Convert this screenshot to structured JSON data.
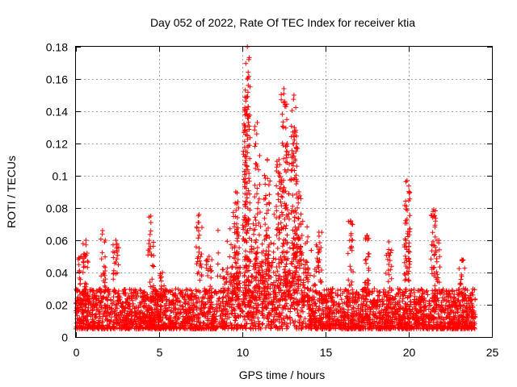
{
  "chart_data": {
    "type": "scatter",
    "title": "Day 052 of 2022, Rate Of TEC Index for receiver ktia",
    "xlabel": "GPS time / hours",
    "ylabel": "ROTI / TECUs",
    "xlim": [
      0,
      25
    ],
    "ylim": [
      0,
      0.18
    ],
    "xticks": [
      "0",
      "5",
      "10",
      "15",
      "20",
      "25"
    ],
    "yticks": [
      "0",
      "0.02",
      "0.04",
      "0.06",
      "0.08",
      "0.1",
      "0.12",
      "0.14",
      "0.16",
      "0.18"
    ],
    "grid": true,
    "marker": "plus",
    "color": "#ff0000",
    "baseline_range": [
      0.005,
      0.03
    ],
    "peaks": [
      {
        "x": 0.3,
        "y": 0.05
      },
      {
        "x": 0.6,
        "y": 0.06
      },
      {
        "x": 1.6,
        "y": 0.066
      },
      {
        "x": 2.4,
        "y": 0.06
      },
      {
        "x": 4.5,
        "y": 0.075
      },
      {
        "x": 5.2,
        "y": 0.04
      },
      {
        "x": 7.4,
        "y": 0.076
      },
      {
        "x": 8.0,
        "y": 0.05
      },
      {
        "x": 9.6,
        "y": 0.09
      },
      {
        "x": 10.2,
        "y": 0.14
      },
      {
        "x": 10.3,
        "y": 0.18
      },
      {
        "x": 10.3,
        "y": 0.16
      },
      {
        "x": 10.9,
        "y": 0.133
      },
      {
        "x": 11.5,
        "y": 0.11
      },
      {
        "x": 12.2,
        "y": 0.11
      },
      {
        "x": 12.5,
        "y": 0.154
      },
      {
        "x": 12.7,
        "y": 0.12
      },
      {
        "x": 13.1,
        "y": 0.15
      },
      {
        "x": 13.2,
        "y": 0.127
      },
      {
        "x": 13.4,
        "y": 0.09
      },
      {
        "x": 14.6,
        "y": 0.065
      },
      {
        "x": 16.5,
        "y": 0.072
      },
      {
        "x": 17.5,
        "y": 0.063
      },
      {
        "x": 18.8,
        "y": 0.059
      },
      {
        "x": 19.9,
        "y": 0.097
      },
      {
        "x": 19.9,
        "y": 0.073
      },
      {
        "x": 21.5,
        "y": 0.079
      },
      {
        "x": 21.7,
        "y": 0.06
      },
      {
        "x": 23.2,
        "y": 0.048
      }
    ]
  }
}
